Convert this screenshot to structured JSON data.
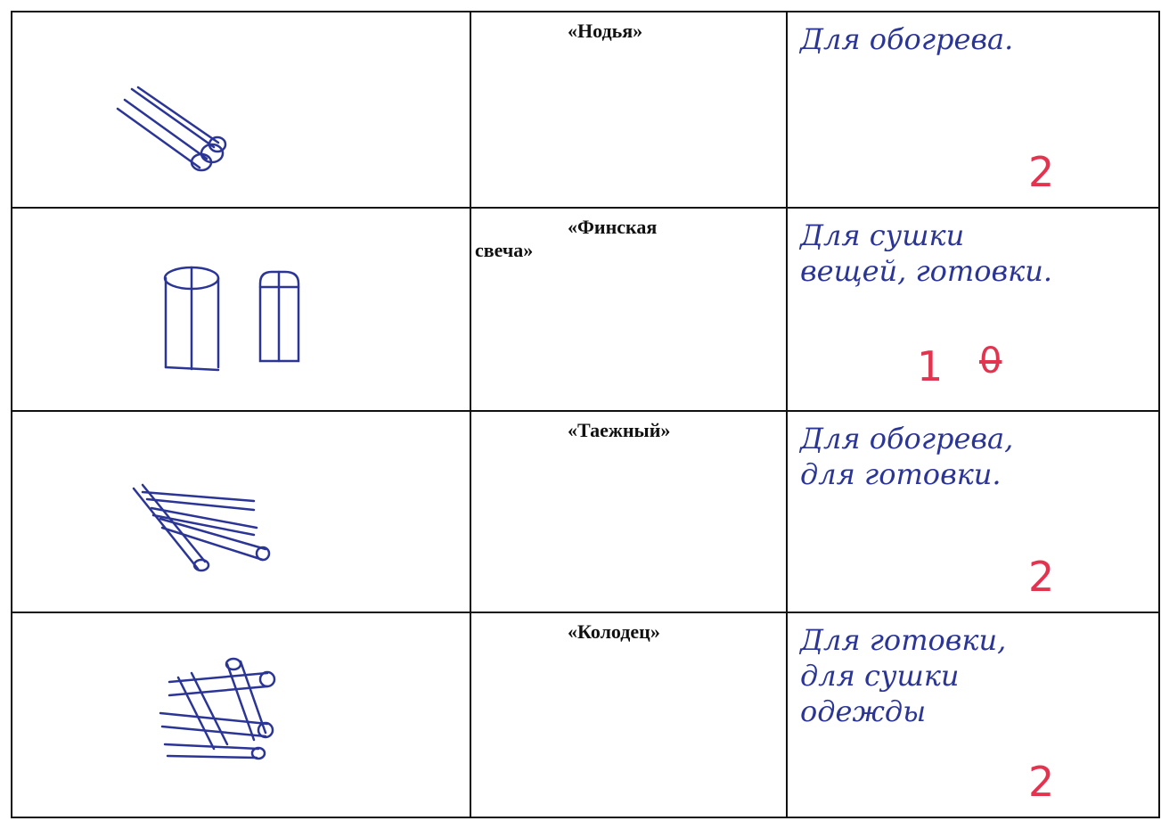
{
  "table": {
    "rows": [
      {
        "name_lines": [
          "«Нодья»"
        ],
        "purpose_lines": [
          "Для обогрева."
        ],
        "grade": "2"
      },
      {
        "name_lines": [
          "«Финская",
          "свеча»"
        ],
        "purpose_lines": [
          "Для сушки",
          "вещей, готовки."
        ],
        "grade": "1",
        "struck_grade": "0"
      },
      {
        "name_lines": [
          "«Таежный»"
        ],
        "purpose_lines": [
          "Для обогрева,",
          "для готовки."
        ],
        "grade": "2"
      },
      {
        "name_lines": [
          "«Колодец»"
        ],
        "purpose_lines": [
          "Для готовки,",
          "для сушки",
          "одежды"
        ],
        "grade": "2"
      }
    ]
  }
}
